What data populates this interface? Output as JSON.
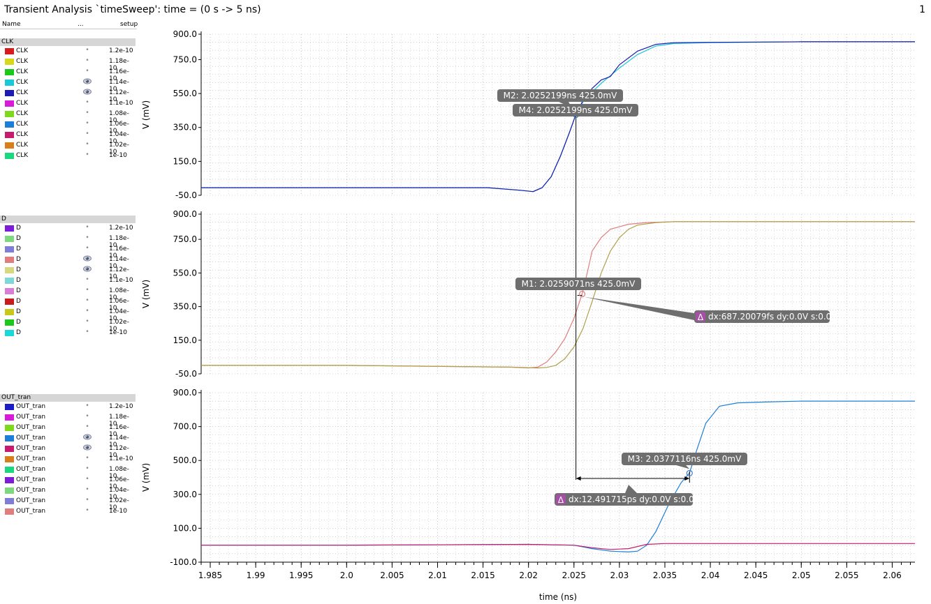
{
  "window": {
    "title": "Transient Analysis `timeSweep': time = (0 s -> 5 ns)",
    "page_number": "1"
  },
  "legend_columns": {
    "name": "Name",
    "visibility": "...",
    "value": "setup"
  },
  "groups": [
    {
      "name": "CLK",
      "signals": [
        {
          "name": "CLK",
          "value": "1.2e-10",
          "color": "#d81b1b",
          "visible": false
        },
        {
          "name": "CLK",
          "value": "1.18e-10",
          "color": "#d8d81b",
          "visible": false
        },
        {
          "name": "CLK",
          "value": "1.16e-10",
          "color": "#1bc81b",
          "visible": false
        },
        {
          "name": "CLK",
          "value": "1.14e-10",
          "color": "#1bc8d8",
          "visible": true
        },
        {
          "name": "CLK",
          "value": "1.12e-10",
          "color": "#1b1bb4",
          "visible": true
        },
        {
          "name": "CLK",
          "value": "1.1e-10",
          "color": "#d81bd8",
          "visible": false
        },
        {
          "name": "CLK",
          "value": "1.08e-10",
          "color": "#7ed81b",
          "visible": false
        },
        {
          "name": "CLK",
          "value": "1.06e-10",
          "color": "#1b7ed8",
          "visible": false
        },
        {
          "name": "CLK",
          "value": "1.04e-10",
          "color": "#c81b6e",
          "visible": false
        },
        {
          "name": "CLK",
          "value": "1.02e-10",
          "color": "#d87e1b",
          "visible": false
        },
        {
          "name": "CLK",
          "value": "1e-10",
          "color": "#1bd87e",
          "visible": false
        }
      ]
    },
    {
      "name": "D",
      "signals": [
        {
          "name": "D",
          "value": "1.2e-10",
          "color": "#7e1bd8",
          "visible": false
        },
        {
          "name": "D",
          "value": "1.18e-10",
          "color": "#7ed87e",
          "visible": false
        },
        {
          "name": "D",
          "value": "1.16e-10",
          "color": "#7e7ed8",
          "visible": false
        },
        {
          "name": "D",
          "value": "1.14e-10",
          "color": "#e07e7e",
          "visible": true
        },
        {
          "name": "D",
          "value": "1.12e-10",
          "color": "#d8d87e",
          "visible": true
        },
        {
          "name": "D",
          "value": "1.1e-10",
          "color": "#7ed8d8",
          "visible": false
        },
        {
          "name": "D",
          "value": "1.08e-10",
          "color": "#d87ed8",
          "visible": false
        },
        {
          "name": "D",
          "value": "1.06e-10",
          "color": "#c81b1b",
          "visible": false
        },
        {
          "name": "D",
          "value": "1.04e-10",
          "color": "#c8c81b",
          "visible": false
        },
        {
          "name": "D",
          "value": "1.02e-10",
          "color": "#1bc81b",
          "visible": false
        },
        {
          "name": "D",
          "value": "1e-10",
          "color": "#1bd8d8",
          "visible": false
        }
      ]
    },
    {
      "name": "OUT_tran",
      "signals": [
        {
          "name": "OUT_tran",
          "value": "1.2e-10",
          "color": "#1b1bc8",
          "visible": false
        },
        {
          "name": "OUT_tran",
          "value": "1.18e-10",
          "color": "#d81bd8",
          "visible": false
        },
        {
          "name": "OUT_tran",
          "value": "1.16e-10",
          "color": "#7ed81b",
          "visible": false
        },
        {
          "name": "OUT_tran",
          "value": "1.14e-10",
          "color": "#1b7ed8",
          "visible": true
        },
        {
          "name": "OUT_tran",
          "value": "1.12e-10",
          "color": "#c81b6e",
          "visible": true
        },
        {
          "name": "OUT_tran",
          "value": "1.1e-10",
          "color": "#d87e1b",
          "visible": false
        },
        {
          "name": "OUT_tran",
          "value": "1.08e-10",
          "color": "#1bd87e",
          "visible": false
        },
        {
          "name": "OUT_tran",
          "value": "1.06e-10",
          "color": "#7e1bd8",
          "visible": false
        },
        {
          "name": "OUT_tran",
          "value": "1.04e-10",
          "color": "#7ed87e",
          "visible": false
        },
        {
          "name": "OUT_tran",
          "value": "1.02e-10",
          "color": "#7e7ed8",
          "visible": false
        },
        {
          "name": "OUT_tran",
          "value": "1e-10",
          "color": "#e07e7e",
          "visible": false
        }
      ]
    }
  ],
  "markers": {
    "M1": "M1: 2.0259071ns 425.0mV",
    "M2": "M2: 2.0252199ns 425.0mV",
    "M3": "M3: 2.0377116ns 425.0mV",
    "M4": "M4: 2.0252199ns 425.0mV",
    "delta_icon": "Δ",
    "delta1": "dx:687.20079fs dy:0.0V s:0.0",
    "delta2": "dx:12.491715ps dy:0.0V s:0.0"
  },
  "chart_data": [
    {
      "type": "line",
      "group": "CLK",
      "xlabel": "",
      "ylabel": "V (mV)",
      "xlim": [
        1.984,
        2.0625
      ],
      "ylim": [
        -50.0,
        900.0
      ],
      "yticks": [
        -50.0,
        150.0,
        350.0,
        550.0,
        750.0,
        900.0
      ],
      "ytick_labels": [
        "-50.0",
        "150.0",
        "350.0",
        "550.0",
        "750.0",
        "900.0"
      ],
      "series": [
        {
          "color": "#1bc8d8",
          "x": [
            1.984,
            2.0,
            2.0155,
            2.019,
            2.0205,
            2.0215,
            2.0225,
            2.0235,
            2.0245,
            2.0252,
            2.026,
            2.027,
            2.028,
            2.03,
            2.032,
            2.034,
            2.036,
            2.04,
            2.05,
            2.0625
          ],
          "y": [
            -5,
            -5,
            -5,
            -20,
            -28,
            -5,
            60,
            180,
            320,
            425,
            500,
            560,
            610,
            700,
            780,
            830,
            845,
            850,
            855,
            855
          ]
        },
        {
          "color": "#1b1bb4",
          "x": [
            1.984,
            2.0,
            2.0155,
            2.019,
            2.0205,
            2.0215,
            2.0225,
            2.0235,
            2.0245,
            2.0252,
            2.026,
            2.027,
            2.028,
            2.029,
            2.03,
            2.032,
            2.034,
            2.036,
            2.04,
            2.05,
            2.0625
          ],
          "y": [
            -5,
            -5,
            -5,
            -20,
            -28,
            -5,
            60,
            180,
            320,
            425,
            510,
            580,
            630,
            650,
            720,
            800,
            840,
            850,
            852,
            855,
            855
          ]
        }
      ]
    },
    {
      "type": "line",
      "group": "D",
      "xlabel": "",
      "ylabel": "V (mV)",
      "xlim": [
        1.984,
        2.0625
      ],
      "ylim": [
        -50.0,
        900.0
      ],
      "yticks": [
        -50.0,
        150.0,
        350.0,
        550.0,
        750.0,
        900.0
      ],
      "ytick_labels": [
        "-50.0",
        "150.0",
        "350.0",
        "550.0",
        "750.0",
        "900.0"
      ],
      "series": [
        {
          "color": "#e07e7e",
          "x": [
            1.984,
            2.0,
            2.018,
            2.02,
            2.021,
            2.022,
            2.023,
            2.024,
            2.025,
            2.0259,
            2.0265,
            2.027,
            2.028,
            2.029,
            2.031,
            2.033,
            2.036,
            2.0625
          ],
          "y": [
            0,
            0,
            -10,
            -15,
            -10,
            20,
            80,
            160,
            280,
            425,
            560,
            680,
            760,
            810,
            840,
            850,
            855,
            855
          ]
        },
        {
          "color": "#b0a04a",
          "x": [
            1.984,
            2.0,
            2.018,
            2.021,
            2.022,
            2.023,
            2.024,
            2.025,
            2.026,
            2.027,
            2.028,
            2.029,
            2.03,
            2.031,
            2.032,
            2.034,
            2.036,
            2.0625
          ],
          "y": [
            0,
            0,
            -10,
            -15,
            -12,
            0,
            40,
            110,
            220,
            380,
            550,
            680,
            760,
            810,
            835,
            850,
            855,
            855
          ]
        }
      ]
    },
    {
      "type": "line",
      "group": "OUT_tran",
      "xlabel": "time (ns)",
      "ylabel": "V (mV)",
      "xlim": [
        1.984,
        2.0625
      ],
      "ylim": [
        -100.0,
        900.0
      ],
      "yticks": [
        -100.0,
        100.0,
        300.0,
        500.0,
        700.0,
        900.0
      ],
      "ytick_labels": [
        "-100.0",
        "100.0",
        "300.0",
        "500.0",
        "700.0",
        "900.0"
      ],
      "xticks": [
        1.985,
        1.99,
        1.995,
        2.0,
        2.005,
        2.01,
        2.015,
        2.02,
        2.025,
        2.03,
        2.035,
        2.04,
        2.045,
        2.05,
        2.055,
        2.06
      ],
      "xtick_labels": [
        "1.985",
        "1.99",
        "1.995",
        "2.0",
        "2.005",
        "2.01",
        "2.015",
        "2.02",
        "2.025",
        "2.03",
        "2.035",
        "2.04",
        "2.045",
        "2.05",
        "2.055",
        "2.06"
      ],
      "series": [
        {
          "color": "#1b7ed8",
          "x": [
            1.984,
            2.0,
            2.02,
            2.025,
            2.027,
            2.029,
            2.031,
            2.032,
            2.033,
            2.034,
            2.0355,
            2.0368,
            2.0377,
            2.0385,
            2.0395,
            2.041,
            2.043,
            2.046,
            2.05,
            2.0625
          ],
          "y": [
            0,
            0,
            5,
            0,
            -20,
            -35,
            -40,
            -35,
            0,
            80,
            250,
            370,
            425,
            560,
            720,
            820,
            840,
            845,
            850,
            850
          ]
        },
        {
          "color": "#c81b6e",
          "x": [
            1.984,
            2.0,
            2.02,
            2.025,
            2.027,
            2.029,
            2.031,
            2.033,
            2.035,
            2.0625
          ],
          "y": [
            0,
            0,
            5,
            0,
            -15,
            -25,
            -20,
            5,
            10,
            10
          ]
        }
      ]
    }
  ]
}
